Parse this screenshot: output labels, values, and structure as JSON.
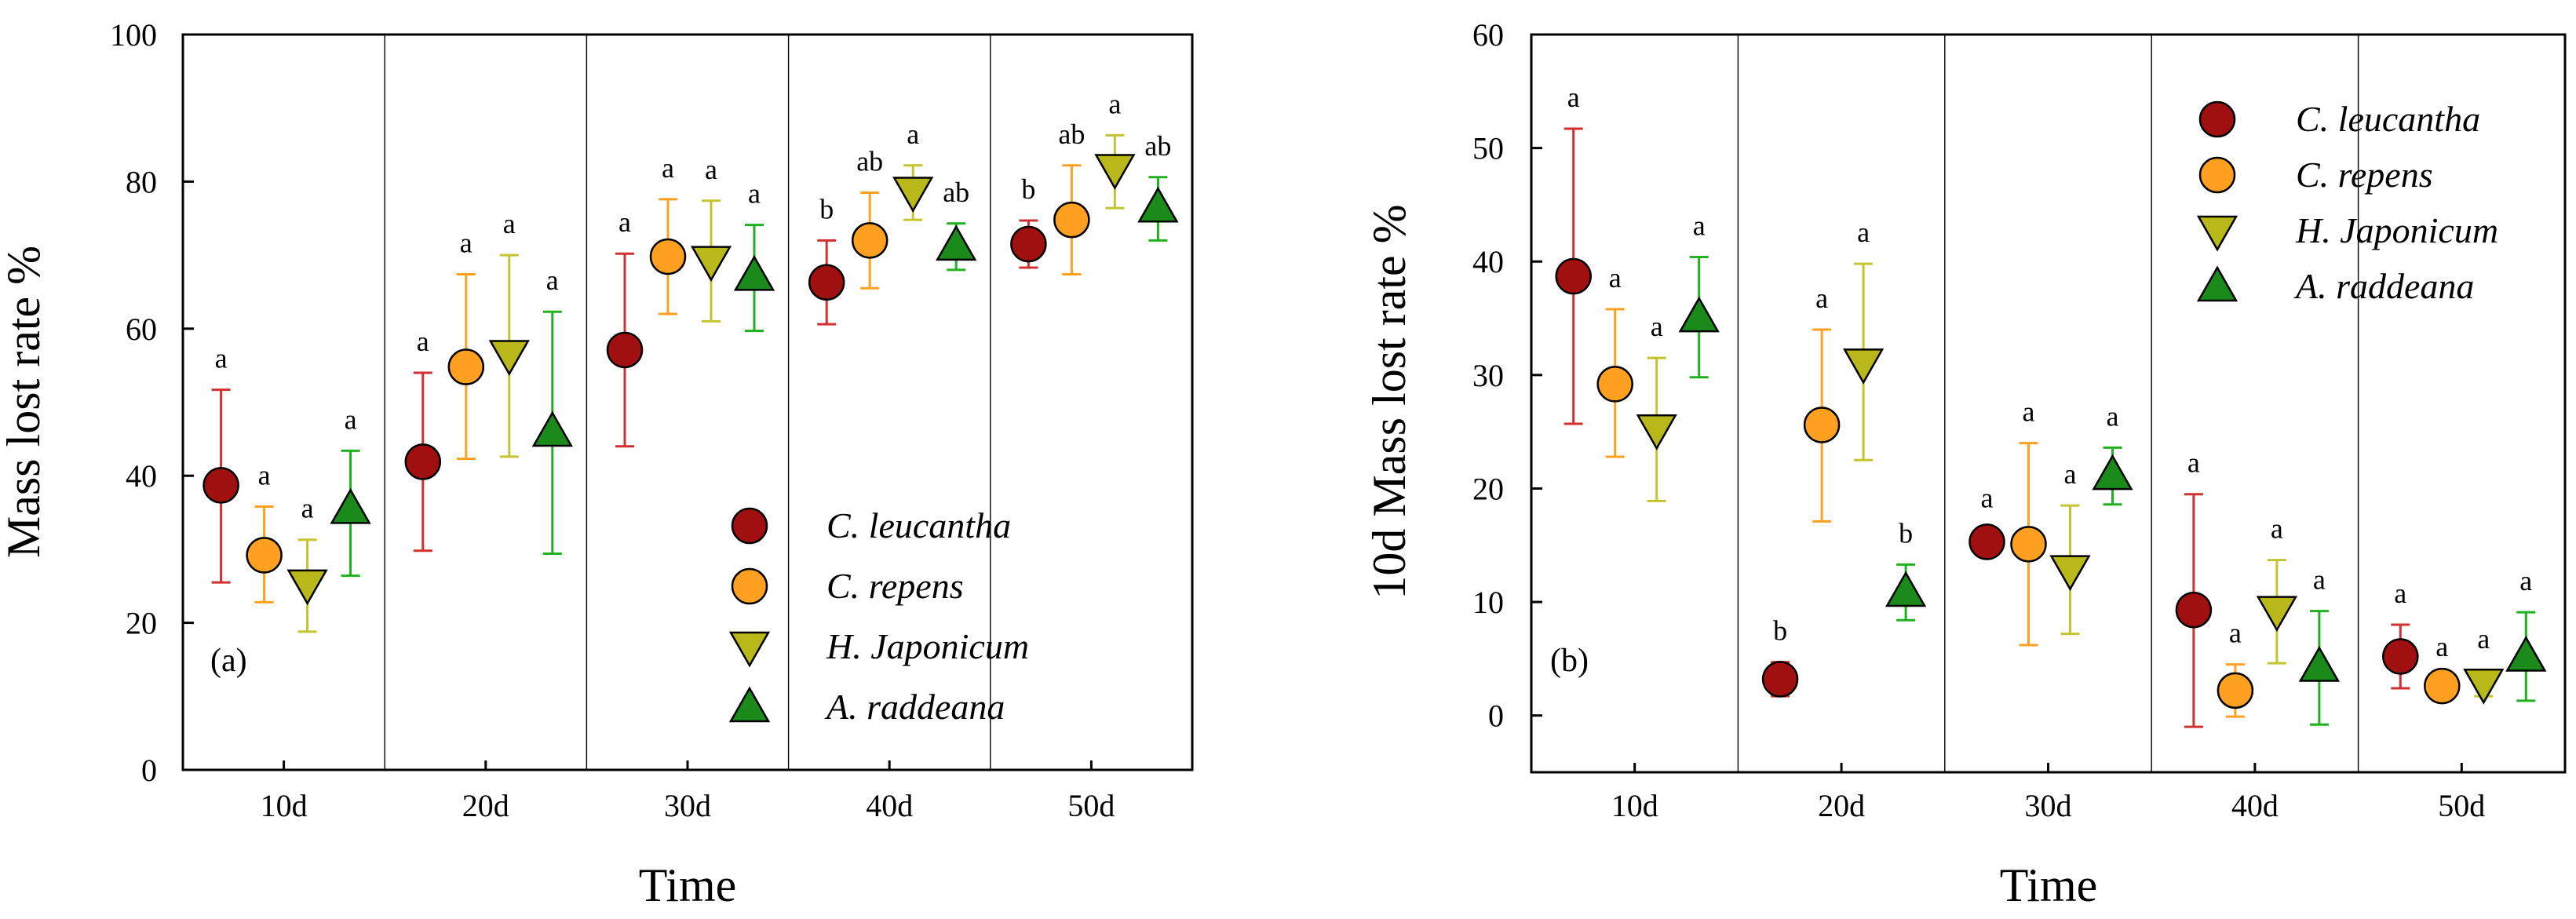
{
  "chart_data": [
    {
      "type": "scatter",
      "panel_label": "(a)",
      "xlabel": "Time",
      "ylabel": "Mass lost rate %",
      "ylim": [
        0,
        100
      ],
      "yticks": [
        "0",
        "20",
        "40",
        "60",
        "80",
        "100"
      ],
      "categories": [
        "10d",
        "20d",
        "30d",
        "40d",
        "50d"
      ],
      "legend_position": "lower-right",
      "series": [
        {
          "name": "C. leucantha",
          "marker": "circle",
          "color": "#a01010",
          "err_color": "#d03030",
          "values": [
            38.7,
            41.9,
            57.1,
            66.3,
            71.5
          ],
          "err_low": [
            25.5,
            29.8,
            44.0,
            60.6,
            68.3
          ],
          "err_high": [
            51.7,
            54.0,
            70.2,
            72.0,
            74.7
          ],
          "labels": [
            "a",
            "a",
            "a",
            "b",
            "b"
          ]
        },
        {
          "name": "C. repens",
          "marker": "circle",
          "color": "#ffa020",
          "err_color": "#ffa020",
          "values": [
            29.2,
            54.8,
            69.8,
            72.0,
            74.8
          ],
          "err_low": [
            22.8,
            42.3,
            62.0,
            65.5,
            67.4
          ],
          "err_high": [
            35.8,
            67.4,
            77.6,
            78.5,
            82.2
          ],
          "labels": [
            "a",
            "a",
            "a",
            "ab",
            "ab"
          ]
        },
        {
          "name": "H. Japonicum",
          "marker": "triangle-down",
          "color": "#b8b81a",
          "err_color": "#c4c430",
          "values": [
            25.2,
            56.4,
            69.2,
            78.6,
            81.7
          ],
          "err_low": [
            18.8,
            42.6,
            61.0,
            74.8,
            76.4
          ],
          "err_high": [
            31.3,
            70.0,
            77.4,
            82.2,
            86.3
          ],
          "labels": [
            "a",
            "a",
            "a",
            "a",
            "a"
          ]
        },
        {
          "name": "A. raddeana",
          "marker": "triangle-up",
          "color": "#1a8a1a",
          "err_color": "#20b020",
          "values": [
            35.5,
            46.0,
            67.2,
            71.3,
            76.5
          ],
          "err_low": [
            26.4,
            29.4,
            59.7,
            68.0,
            72.0
          ],
          "err_high": [
            43.4,
            62.3,
            74.1,
            74.3,
            80.6
          ],
          "labels": [
            "a",
            "a",
            "a",
            "ab",
            "ab"
          ]
        }
      ]
    },
    {
      "type": "scatter",
      "panel_label": "(b)",
      "xlabel": "Time",
      "ylabel": "10d Mass lost rate %",
      "ylim": [
        -5,
        60
      ],
      "yticks": [
        "0",
        "10",
        "20",
        "30",
        "40",
        "50",
        "60"
      ],
      "categories": [
        "10d",
        "20d",
        "30d",
        "40d",
        "50d"
      ],
      "legend_position": "top-right",
      "series": [
        {
          "name": "C. leucantha",
          "marker": "circle",
          "color": "#a01010",
          "err_color": "#d03030",
          "values": [
            38.7,
            3.2,
            15.3,
            9.3,
            5.2
          ],
          "err_low": [
            25.7,
            1.7,
            14.2,
            -1.0,
            2.4
          ],
          "err_high": [
            51.7,
            4.7,
            16.4,
            19.5,
            8.0
          ],
          "labels": [
            "a",
            "b",
            "a",
            "a",
            "a"
          ]
        },
        {
          "name": "C. repens",
          "marker": "circle",
          "color": "#ffa020",
          "err_color": "#ffa020",
          "values": [
            29.2,
            25.6,
            15.1,
            2.2,
            2.6
          ],
          "err_low": [
            22.8,
            17.1,
            6.2,
            -0.1,
            1.9
          ],
          "err_high": [
            35.8,
            34.0,
            24.0,
            4.5,
            3.3
          ],
          "labels": [
            "a",
            "a",
            "a",
            "a",
            "a"
          ]
        },
        {
          "name": "H. Japonicum",
          "marker": "triangle-down",
          "color": "#b8b81a",
          "err_color": "#c4c430",
          "values": [
            25.2,
            31.0,
            12.8,
            9.2,
            2.8
          ],
          "err_low": [
            18.9,
            22.5,
            7.2,
            4.6,
            1.7
          ],
          "err_high": [
            31.5,
            39.8,
            18.5,
            13.7,
            4.0
          ],
          "labels": [
            "a",
            "a",
            "a",
            "a",
            "a"
          ]
        },
        {
          "name": "A. raddeana",
          "marker": "triangle-up",
          "color": "#1a8a1a",
          "err_color": "#20b020",
          "values": [
            35.1,
            10.9,
            21.2,
            4.3,
            5.2
          ],
          "err_low": [
            29.8,
            8.4,
            18.6,
            -0.8,
            1.3
          ],
          "err_high": [
            40.4,
            13.3,
            23.6,
            9.2,
            9.1
          ],
          "labels": [
            "a",
            "b",
            "a",
            "a",
            "a"
          ]
        }
      ]
    }
  ]
}
